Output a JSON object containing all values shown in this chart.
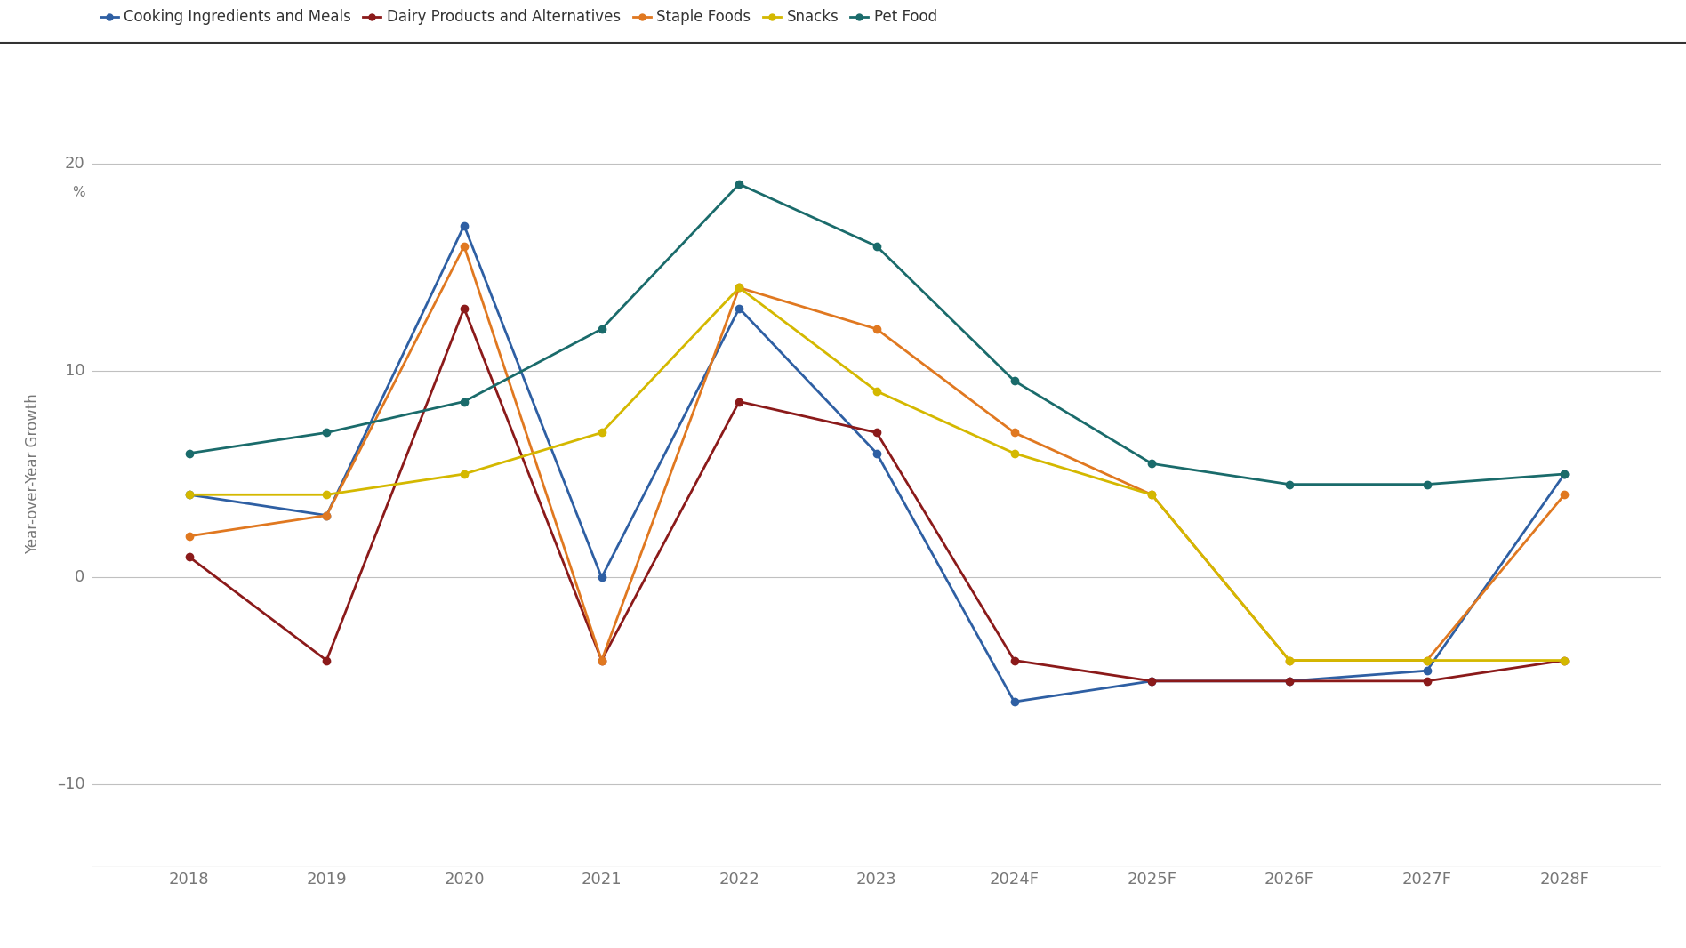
{
  "series": [
    {
      "label": "Cooking Ingredients and Meals",
      "color": "#2E5FA3",
      "values": [
        4.0,
        3.0,
        17.0,
        0.0,
        13.0,
        6.0,
        -6.0,
        -5.0,
        -5.0,
        -4.5,
        5.0
      ]
    },
    {
      "label": "Dairy Products and Alternatives",
      "color": "#8B1A1A",
      "values": [
        1.0,
        -4.0,
        13.0,
        -4.0,
        8.5,
        7.0,
        -4.0,
        -5.0,
        -5.0,
        -5.0,
        -4.0
      ]
    },
    {
      "label": "Staple Foods",
      "color": "#E07820",
      "values": [
        2.0,
        3.0,
        16.0,
        -4.0,
        14.0,
        12.0,
        7.0,
        4.0,
        -4.0,
        -4.0,
        4.0
      ]
    },
    {
      "label": "Snacks",
      "color": "#D4B800",
      "values": [
        4.0,
        4.0,
        5.0,
        7.0,
        14.0,
        9.0,
        6.0,
        4.0,
        -4.0,
        -4.0,
        -4.0
      ]
    },
    {
      "label": "Pet Food",
      "color": "#1A6B6B",
      "values": [
        6.0,
        7.0,
        8.5,
        12.0,
        19.0,
        16.0,
        9.5,
        5.5,
        4.5,
        4.5,
        5.0
      ]
    }
  ],
  "x_positions": [
    2018,
    2019,
    2020,
    2021,
    2022,
    2023,
    2024,
    2025,
    2026,
    2027,
    2028
  ],
  "x_labels": [
    "2018",
    "2019",
    "2020",
    "2021",
    "2022",
    "2023",
    "2024F",
    "2025F",
    "2026F",
    "2027F",
    "2028F"
  ],
  "yticks": [
    -10,
    0,
    10,
    20
  ],
  "ytick_labels": [
    "–10",
    "0",
    "10",
    "20"
  ],
  "ylim": [
    -14,
    24
  ],
  "xlim": [
    2017.3,
    2028.7
  ],
  "ylabel": "Year-over-Year Growth",
  "background_color": "#FFFFFF",
  "gridline_color": "#C0C0C0",
  "gridline_lw": 0.8,
  "line_lw": 2.0,
  "marker_size": 6,
  "top_border_color": "#555555",
  "axis_color": "#777777",
  "tick_fontsize": 13,
  "legend_fontsize": 12,
  "ylabel_fontsize": 12
}
